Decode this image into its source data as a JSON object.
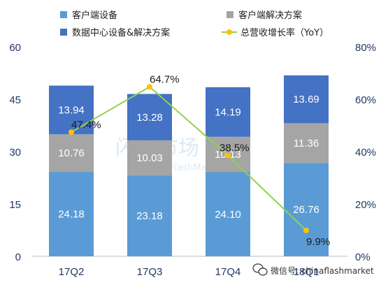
{
  "chart_data": {
    "type": "bar",
    "stacked": true,
    "categories": [
      "17Q2",
      "17Q3",
      "17Q4",
      "18Q1"
    ],
    "series": [
      {
        "name": "客户端设备",
        "color": "#5b9bd5",
        "values": [
          24.18,
          23.18,
          24.1,
          26.76
        ],
        "labels": [
          "24.18",
          "23.18",
          "24.10",
          "26.76"
        ]
      },
      {
        "name": "客户端解决方案",
        "color": "#a5a5a5",
        "values": [
          10.76,
          10.03,
          10.13,
          11.36
        ],
        "labels": [
          "10.76",
          "10.03",
          "10.13",
          "11.36"
        ]
      },
      {
        "name": "数据中心设备&解决方案",
        "color": "#4472c4",
        "values": [
          13.94,
          13.28,
          14.19,
          13.69
        ],
        "labels": [
          "13.94",
          "13.28",
          "14.19",
          "13.69"
        ]
      }
    ],
    "line_series": {
      "name": "总营收增长率（YoY）",
      "color": "#92d050",
      "marker_color": "#ffc000",
      "values": [
        47.4,
        64.7,
        38.5,
        9.9
      ],
      "labels": [
        "47.4%",
        "64.7%",
        "38.5%",
        "9.9%"
      ],
      "axis": "right"
    },
    "left_axis": {
      "min": 0,
      "max": 60,
      "ticks": [
        "0",
        "15",
        "30",
        "45",
        "60"
      ]
    },
    "right_axis": {
      "min": 0,
      "max": 80,
      "ticks": [
        "0%",
        "20%",
        "40%",
        "60%",
        "80%"
      ]
    },
    "legend_position": "top",
    "grid": false
  },
  "watermark": {
    "text": "微信号: chinaflashmarket",
    "faint_text": "闪存市场",
    "faint_sub": "ChinaFlashMarket"
  }
}
